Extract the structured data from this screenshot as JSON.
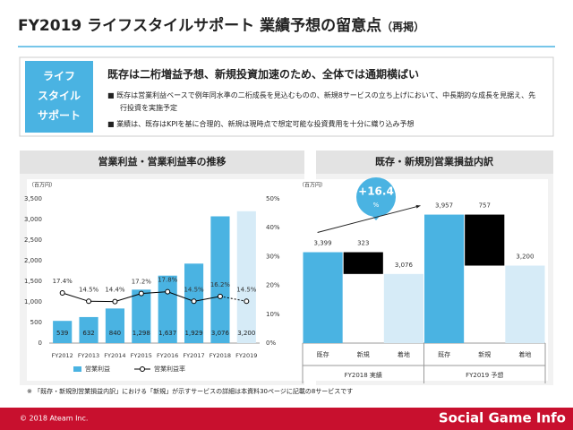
{
  "header": {
    "title": "FY2019 ライフスタイルサポート 業績予想の留意点",
    "title_suffix": "（再掲）"
  },
  "summary": {
    "label": [
      "ライフ",
      "スタイル",
      "サポート"
    ],
    "headline": "既存は二桁増益予想、新規投資加速のため、全体では通期横ばい",
    "bullets": [
      "既存は営業利益ベースで例年同水準の二桁成長を見込むものの、新規8サービスの立ち上げにおいて、中長期的な成長を見据え、先行投資を実施予定",
      "業績は、既存はKPIを基に合理的、新規は現時点で想定可能な投資費用を十分に織り込み予想"
    ]
  },
  "chart_data": [
    {
      "type": "bar_line",
      "title": "営業利益・営業利益率の推移",
      "unit_label": "（百万円）",
      "categories": [
        "FY2012",
        "FY2013",
        "FY2014",
        "FY2015",
        "FY2016",
        "FY2017",
        "FY2018",
        "FY2019"
      ],
      "forecast": [
        false,
        false,
        false,
        false,
        false,
        false,
        false,
        true
      ],
      "series": [
        {
          "name": "営業利益",
          "color": "#4ab3e2",
          "forecast_color": "#d6ebf7",
          "values": [
            539,
            632,
            840,
            1298,
            1637,
            1929,
            3076,
            3200
          ],
          "value_labels": [
            "539",
            "632",
            "840",
            "1,298",
            "1,637",
            "1,929",
            "3,076",
            "3,200"
          ]
        },
        {
          "name": "営業利益率",
          "color": "#000000",
          "axis": "y2",
          "values": [
            17.4,
            14.5,
            14.4,
            17.2,
            17.8,
            14.5,
            16.2,
            14.5
          ],
          "value_labels": [
            "17.4%",
            "14.5%",
            "14.4%",
            "17.2%",
            "17.8%",
            "14.5%",
            "16.2%",
            "14.5%"
          ]
        }
      ],
      "ylim": [
        0,
        3500
      ],
      "yticks": [
        0,
        500,
        {
          "value": 1000,
          "label": "1,000"
        },
        {
          "value": 1500,
          "label": "1,500"
        },
        {
          "value": 2000,
          "label": "2,000"
        },
        {
          "value": 2500,
          "label": "2,500"
        },
        {
          "value": 3000,
          "label": "3,000"
        },
        {
          "value": 3500,
          "label": "3,500"
        }
      ],
      "y2lim": [
        0,
        50
      ],
      "y2ticks": [
        {
          "value": 0,
          "label": "0%"
        },
        {
          "value": 10,
          "label": "10%"
        },
        {
          "value": 20,
          "label": "20%"
        },
        {
          "value": 30,
          "label": "30%"
        },
        {
          "value": 40,
          "label": "40%"
        },
        {
          "value": 50,
          "label": "50%"
        }
      ]
    },
    {
      "type": "waterfall",
      "title": "既存・新規別営業損益内訳",
      "unit_label": "（百万円）",
      "categories": [
        "既存",
        "新規",
        "着地",
        "既存",
        "新規",
        "着地"
      ],
      "groups": [
        "FY2018 実績",
        "FY2019 予想"
      ],
      "steps": [
        "total",
        "decrease",
        "total",
        "total",
        "decrease",
        "total"
      ],
      "values": [
        3399,
        323,
        3076,
        3957,
        757,
        3200
      ],
      "value_labels": [
        "3,399",
        "323",
        "3,076",
        "3,957",
        "757",
        "3,200"
      ],
      "colors": [
        "#4ab3e2",
        "#000000",
        "#d6ebf7",
        "#4ab3e2",
        "#000000",
        "#d6ebf7"
      ],
      "ylim": [
        2050,
        4350
      ],
      "annotation": {
        "value": "+16.4",
        "unit": "%"
      }
    }
  ],
  "footnote": "※ 「既存・新規別営業損益内訳」における「新規」が示すサービスの詳細は本資料30ページに記載の8サービスです",
  "footer": {
    "copyright": "© 2018 Ateam Inc.",
    "watermark": "Social Game Info"
  }
}
